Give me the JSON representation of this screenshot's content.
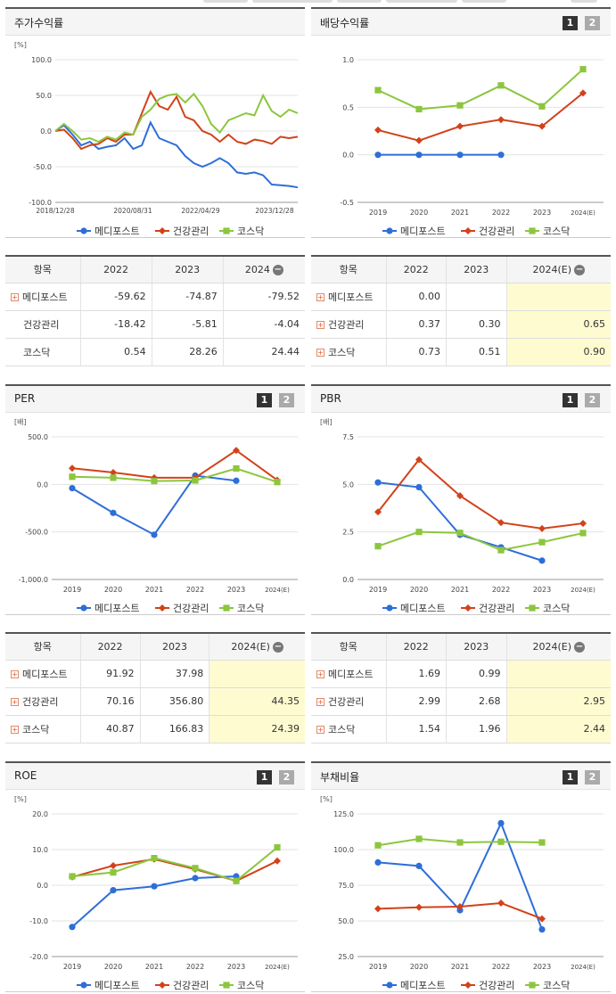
{
  "legend": {
    "s1": "메디포스트",
    "s2": "건강관리",
    "s3": "코스닥"
  },
  "colors": {
    "s1": "#2e6ed8",
    "s2": "#d2421a",
    "s3": "#8cc63e"
  },
  "page_buttons": {
    "b1": "1",
    "b2": "2"
  },
  "col_item": "항목",
  "charts": {
    "returns": {
      "title": "주가수익률",
      "unit": "[%]",
      "yticks": [
        "100.0",
        "50.0",
        "0.0",
        "-50.0",
        "-100.0"
      ],
      "xticks": [
        "2018/12/28",
        "2020/08/31",
        "2022/04/29",
        "2023/12/28"
      ]
    },
    "dividend": {
      "title": "배당수익률",
      "yticks": [
        "1.0",
        "0.5",
        "0.0",
        "-0.5"
      ],
      "xticks": [
        "2019",
        "2020",
        "2021",
        "2022",
        "2023",
        "2024(E)"
      ]
    },
    "per": {
      "title": "PER",
      "unit": "[배]",
      "yticks": [
        "500.0",
        "0.0",
        "-500.0",
        "-1,000.0"
      ],
      "xticks": [
        "2019",
        "2020",
        "2021",
        "2022",
        "2023",
        "2024(E)"
      ]
    },
    "pbr": {
      "title": "PBR",
      "unit": "[배]",
      "yticks": [
        "7.5",
        "5.0",
        "2.5",
        "0.0"
      ],
      "xticks": [
        "2019",
        "2020",
        "2021",
        "2022",
        "2023",
        "2024(E)"
      ]
    },
    "roe": {
      "title": "ROE",
      "unit": "[%]",
      "yticks": [
        "20.0",
        "10.0",
        "0.0",
        "-10.0",
        "-20.0"
      ],
      "xticks": [
        "2019",
        "2020",
        "2021",
        "2022",
        "2023",
        "2024(E)"
      ]
    },
    "debt": {
      "title": "부채비율",
      "unit": "[%]",
      "yticks": [
        "125.0",
        "100.0",
        "75.0",
        "50.0",
        "25.0"
      ],
      "xticks": [
        "2019",
        "2020",
        "2021",
        "2022",
        "2023",
        "2024(E)"
      ]
    }
  },
  "tables": {
    "returns": {
      "headers": [
        "2022",
        "2023",
        "2024"
      ],
      "rows": [
        {
          "name": "메디포스트",
          "values": [
            "-59.62",
            "-74.87",
            "-79.52"
          ]
        },
        {
          "name": "건강관리",
          "values": [
            "-18.42",
            "-5.81",
            "-4.04"
          ]
        },
        {
          "name": "코스닥",
          "values": [
            "0.54",
            "28.26",
            "24.44"
          ]
        }
      ]
    },
    "dividend": {
      "headers": [
        "2022",
        "2023",
        "2024(E)"
      ],
      "rows": [
        {
          "name": "메디포스트",
          "values": [
            "0.00",
            "",
            ""
          ]
        },
        {
          "name": "건강관리",
          "values": [
            "0.37",
            "0.30",
            "0.65"
          ]
        },
        {
          "name": "코스닥",
          "values": [
            "0.73",
            "0.51",
            "0.90"
          ]
        }
      ]
    },
    "per": {
      "headers": [
        "2022",
        "2023",
        "2024(E)"
      ],
      "rows": [
        {
          "name": "메디포스트",
          "values": [
            "91.92",
            "37.98",
            ""
          ]
        },
        {
          "name": "건강관리",
          "values": [
            "70.16",
            "356.80",
            "44.35"
          ]
        },
        {
          "name": "코스닥",
          "values": [
            "40.87",
            "166.83",
            "24.39"
          ]
        }
      ]
    },
    "pbr": {
      "headers": [
        "2022",
        "2023",
        "2024(E)"
      ],
      "rows": [
        {
          "name": "메디포스트",
          "values": [
            "1.69",
            "0.99",
            ""
          ]
        },
        {
          "name": "건강관리",
          "values": [
            "2.99",
            "2.68",
            "2.95"
          ]
        },
        {
          "name": "코스닥",
          "values": [
            "1.54",
            "1.96",
            "2.44"
          ]
        }
      ]
    }
  },
  "chart_data": [
    {
      "type": "line",
      "title": "주가수익률",
      "ylabel": "[%]",
      "ylim": [
        -100,
        100
      ],
      "x_range": [
        "2018/12/28",
        "2024"
      ],
      "x_ticks": [
        "2018/12/28",
        "2020/08/31",
        "2022/04/29",
        "2023/12/28"
      ],
      "grid": true,
      "legend": "bottom",
      "series": [
        {
          "name": "메디포스트",
          "values": [
            0,
            8,
            -5,
            -20,
            -15,
            -25,
            -22,
            -20,
            -10,
            -25,
            -20,
            12,
            -10,
            -15,
            -20,
            -35,
            -45,
            -50,
            -45,
            -38,
            -45,
            -58,
            -60,
            -58,
            -62,
            -75,
            -76,
            -77,
            -79
          ]
        },
        {
          "name": "건강관리",
          "values": [
            0,
            2,
            -10,
            -25,
            -20,
            -18,
            -10,
            -15,
            -5,
            -5,
            25,
            55,
            35,
            30,
            48,
            20,
            15,
            0,
            -5,
            -15,
            -5,
            -15,
            -18,
            -12,
            -14,
            -18,
            -8,
            -10,
            -8
          ]
        },
        {
          "name": "코스닥",
          "values": [
            0,
            10,
            0,
            -12,
            -10,
            -15,
            -8,
            -12,
            -2,
            -5,
            20,
            30,
            45,
            50,
            52,
            40,
            52,
            35,
            10,
            -2,
            15,
            20,
            25,
            22,
            50,
            28,
            20,
            30,
            25
          ]
        }
      ]
    },
    {
      "type": "line",
      "title": "배당수익률",
      "categories": [
        "2019",
        "2020",
        "2021",
        "2022",
        "2023",
        "2024(E)"
      ],
      "ylim": [
        -0.5,
        1.0
      ],
      "legend": "bottom",
      "series": [
        {
          "name": "메디포스트",
          "values": [
            0.0,
            0.0,
            0.0,
            0.0,
            null,
            null
          ]
        },
        {
          "name": "건강관리",
          "values": [
            0.26,
            0.15,
            0.3,
            0.37,
            0.3,
            0.65
          ]
        },
        {
          "name": "코스닥",
          "values": [
            0.68,
            0.48,
            0.52,
            0.73,
            0.51,
            0.9
          ]
        }
      ]
    },
    {
      "type": "line",
      "title": "PER",
      "ylabel": "[배]",
      "categories": [
        "2019",
        "2020",
        "2021",
        "2022",
        "2023",
        "2024(E)"
      ],
      "ylim": [
        -1000,
        500
      ],
      "legend": "bottom",
      "series": [
        {
          "name": "메디포스트",
          "values": [
            -40,
            -300,
            -530,
            91.92,
            37.98,
            null
          ]
        },
        {
          "name": "건강관리",
          "values": [
            170,
            125,
            70,
            70.16,
            356.8,
            44.35
          ]
        },
        {
          "name": "코스닥",
          "values": [
            80,
            70,
            35,
            40.87,
            166.83,
            24.39
          ]
        }
      ]
    },
    {
      "type": "line",
      "title": "PBR",
      "ylabel": "[배]",
      "categories": [
        "2019",
        "2020",
        "2021",
        "2022",
        "2023",
        "2024(E)"
      ],
      "ylim": [
        0,
        7.5
      ],
      "legend": "bottom",
      "series": [
        {
          "name": "메디포스트",
          "values": [
            5.1,
            4.85,
            2.35,
            1.69,
            0.99,
            null
          ]
        },
        {
          "name": "건강관리",
          "values": [
            3.55,
            6.3,
            4.4,
            2.99,
            2.68,
            2.95
          ]
        },
        {
          "name": "코스닥",
          "values": [
            1.75,
            2.5,
            2.45,
            1.54,
            1.96,
            2.44
          ]
        }
      ]
    },
    {
      "type": "line",
      "title": "ROE",
      "ylabel": "[%]",
      "categories": [
        "2019",
        "2020",
        "2021",
        "2022",
        "2023",
        "2024(E)"
      ],
      "ylim": [
        -20,
        20
      ],
      "legend": "bottom",
      "series": [
        {
          "name": "메디포스트",
          "values": [
            -11.7,
            -1.4,
            -0.3,
            2.0,
            2.5,
            null
          ]
        },
        {
          "name": "건강관리",
          "values": [
            2.3,
            5.5,
            7.3,
            4.5,
            1.2,
            6.8
          ]
        },
        {
          "name": "코스닥",
          "values": [
            2.5,
            3.6,
            7.6,
            4.8,
            1.2,
            10.6
          ]
        }
      ]
    },
    {
      "type": "line",
      "title": "부채비율",
      "ylabel": "[%]",
      "categories": [
        "2019",
        "2020",
        "2021",
        "2022",
        "2023",
        "2024(E)"
      ],
      "ylim": [
        25,
        125
      ],
      "legend": "bottom",
      "series": [
        {
          "name": "메디포스트",
          "values": [
            91,
            88.5,
            57.5,
            118.5,
            44,
            null
          ]
        },
        {
          "name": "건강관리",
          "values": [
            58.5,
            59.5,
            60,
            62.5,
            51.5,
            null
          ]
        },
        {
          "name": "코스닥",
          "values": [
            103,
            107.5,
            105,
            105.5,
            105,
            null
          ]
        }
      ]
    }
  ]
}
